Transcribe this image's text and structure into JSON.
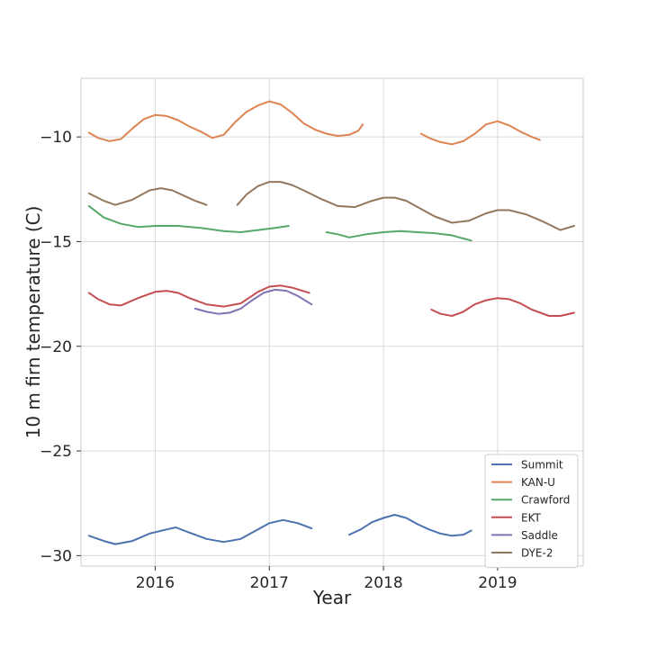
{
  "chart_data": {
    "type": "line",
    "title": "",
    "xlabel": "Year",
    "ylabel": "10 m firn temperature (C)",
    "xlim": [
      2015.35,
      2019.75
    ],
    "ylim": [
      -30.5,
      -7.2
    ],
    "xticks": [
      2016,
      2017,
      2018,
      2019
    ],
    "xtick_labels": [
      "2016",
      "2017",
      "2018",
      "2019"
    ],
    "yticks": [
      -30,
      -25,
      -20,
      -15,
      -10
    ],
    "ytick_labels": [
      "−30",
      "−25",
      "−20",
      "−15",
      "−10"
    ],
    "grid": true,
    "legend_position": "lower-right",
    "series": [
      {
        "name": "Summit",
        "color": "#4c72b0",
        "segments": [
          {
            "x": [
              2015.42,
              2015.55,
              2015.65,
              2015.8,
              2015.95,
              2016.1,
              2016.18,
              2016.3,
              2016.45,
              2016.6,
              2016.75,
              2016.9,
              2017.0,
              2017.12,
              2017.25,
              2017.37
            ],
            "y": [
              -29.05,
              -29.3,
              -29.45,
              -29.3,
              -28.95,
              -28.75,
              -28.65,
              -28.9,
              -29.2,
              -29.35,
              -29.2,
              -28.75,
              -28.45,
              -28.3,
              -28.45,
              -28.7
            ]
          },
          {
            "x": [
              2017.7,
              2017.8,
              2017.9,
              2018.0,
              2018.1,
              2018.2,
              2018.3,
              2018.4,
              2018.5,
              2018.6,
              2018.7,
              2018.77
            ],
            "y": [
              -29.0,
              -28.75,
              -28.4,
              -28.2,
              -28.05,
              -28.2,
              -28.5,
              -28.75,
              -28.95,
              -29.05,
              -29.0,
              -28.8
            ]
          }
        ]
      },
      {
        "name": "KAN-U",
        "color": "#dd8452",
        "segments": [
          {
            "x": [
              2015.42,
              2015.5,
              2015.6,
              2015.7,
              2015.8,
              2015.9,
              2016.0,
              2016.1,
              2016.2,
              2016.3,
              2016.4,
              2016.5,
              2016.6,
              2016.7,
              2016.8,
              2016.9,
              2017.0,
              2017.1,
              2017.2,
              2017.3,
              2017.4,
              2017.5,
              2017.6,
              2017.7,
              2017.78,
              2017.82
            ],
            "y": [
              -9.8,
              -10.05,
              -10.2,
              -10.1,
              -9.6,
              -9.15,
              -8.95,
              -9.0,
              -9.2,
              -9.5,
              -9.75,
              -10.05,
              -9.9,
              -9.3,
              -8.8,
              -8.5,
              -8.3,
              -8.45,
              -8.85,
              -9.35,
              -9.65,
              -9.85,
              -9.95,
              -9.9,
              -9.7,
              -9.4
            ]
          },
          {
            "x": [
              2018.33,
              2018.4,
              2018.5,
              2018.6,
              2018.7,
              2018.8,
              2018.9,
              2019.0,
              2019.1,
              2019.2,
              2019.3,
              2019.37
            ],
            "y": [
              -9.85,
              -10.05,
              -10.25,
              -10.35,
              -10.2,
              -9.85,
              -9.4,
              -9.25,
              -9.45,
              -9.75,
              -10.0,
              -10.15
            ]
          }
        ]
      },
      {
        "name": "Crawford",
        "color": "#55a868",
        "segments": [
          {
            "x": [
              2015.42,
              2015.55,
              2015.7,
              2015.85,
              2016.0,
              2016.2,
              2016.4,
              2016.6,
              2016.75,
              2016.9,
              2017.05,
              2017.17
            ],
            "y": [
              -13.3,
              -13.85,
              -14.15,
              -14.3,
              -14.25,
              -14.25,
              -14.35,
              -14.5,
              -14.55,
              -14.45,
              -14.35,
              -14.25
            ]
          },
          {
            "x": [
              2017.5,
              2017.6,
              2017.7,
              2017.85,
              2018.0,
              2018.15,
              2018.3,
              2018.45,
              2018.6,
              2018.7,
              2018.77
            ],
            "y": [
              -14.55,
              -14.65,
              -14.8,
              -14.65,
              -14.55,
              -14.5,
              -14.55,
              -14.6,
              -14.7,
              -14.85,
              -14.95
            ]
          }
        ]
      },
      {
        "name": "EKT",
        "color": "#c44e52",
        "segments": [
          {
            "x": [
              2015.42,
              2015.5,
              2015.6,
              2015.7,
              2015.85,
              2016.0,
              2016.1,
              2016.2,
              2016.3,
              2016.45,
              2016.6,
              2016.75,
              2016.9,
              2017.0,
              2017.1,
              2017.2,
              2017.35
            ],
            "y": [
              -17.45,
              -17.75,
              -18.0,
              -18.05,
              -17.7,
              -17.4,
              -17.35,
              -17.45,
              -17.7,
              -18.0,
              -18.1,
              -17.95,
              -17.4,
              -17.15,
              -17.1,
              -17.2,
              -17.45
            ]
          },
          {
            "x": [
              2018.42,
              2018.5,
              2018.6,
              2018.7,
              2018.8,
              2018.9,
              2019.0,
              2019.1,
              2019.2,
              2019.3,
              2019.45,
              2019.55,
              2019.67
            ],
            "y": [
              -18.25,
              -18.45,
              -18.55,
              -18.35,
              -18.0,
              -17.8,
              -17.7,
              -17.75,
              -17.95,
              -18.25,
              -18.55,
              -18.55,
              -18.4
            ]
          }
        ]
      },
      {
        "name": "Saddle",
        "color": "#8172b3",
        "segments": [
          {
            "x": [
              2016.35,
              2016.45,
              2016.55,
              2016.65,
              2016.75,
              2016.85,
              2016.95,
              2017.05,
              2017.15,
              2017.25,
              2017.37
            ],
            "y": [
              -18.2,
              -18.35,
              -18.45,
              -18.4,
              -18.2,
              -17.8,
              -17.45,
              -17.3,
              -17.35,
              -17.6,
              -18.0
            ]
          }
        ]
      },
      {
        "name": "DYE-2",
        "color": "#937860",
        "segments": [
          {
            "x": [
              2015.42,
              2015.55,
              2015.65,
              2015.8,
              2015.95,
              2016.05,
              2016.15,
              2016.25,
              2016.35,
              2016.45
            ],
            "y": [
              -12.7,
              -13.05,
              -13.25,
              -13.0,
              -12.55,
              -12.45,
              -12.55,
              -12.8,
              -13.05,
              -13.25
            ]
          },
          {
            "x": [
              2016.72,
              2016.8,
              2016.9,
              2017.0,
              2017.1,
              2017.2,
              2017.3,
              2017.45,
              2017.6,
              2017.75,
              2017.9,
              2018.0,
              2018.1,
              2018.2,
              2018.3,
              2018.45,
              2018.6,
              2018.75,
              2018.9,
              2019.0,
              2019.1,
              2019.25,
              2019.4,
              2019.55,
              2019.67
            ],
            "y": [
              -13.25,
              -12.75,
              -12.35,
              -12.15,
              -12.15,
              -12.3,
              -12.55,
              -12.95,
              -13.3,
              -13.35,
              -13.05,
              -12.9,
              -12.9,
              -13.05,
              -13.35,
              -13.8,
              -14.1,
              -14.0,
              -13.65,
              -13.5,
              -13.5,
              -13.7,
              -14.05,
              -14.45,
              -14.25
            ]
          }
        ]
      }
    ]
  }
}
